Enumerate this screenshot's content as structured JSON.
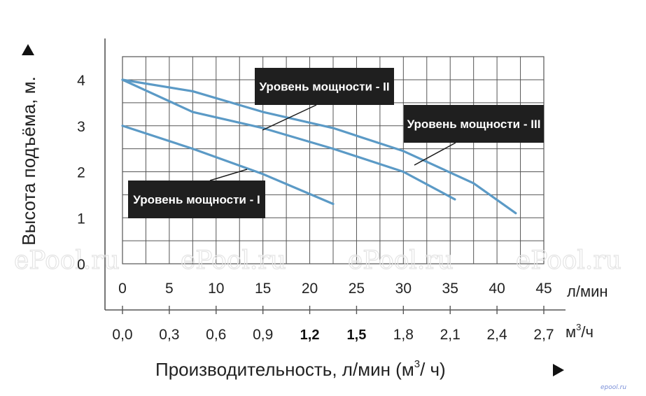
{
  "chart_data": {
    "type": "line",
    "y_axis": {
      "label": "Высота подъёма, м.",
      "ticks": [
        "0",
        "1",
        "2",
        "3",
        "4"
      ],
      "range": [
        0,
        4.5
      ]
    },
    "x_axis_lmin": {
      "unit": "л/мин",
      "ticks": [
        "0",
        "5",
        "10",
        "15",
        "20",
        "25",
        "30",
        "35",
        "40",
        "45"
      ],
      "range": [
        0,
        45
      ]
    },
    "x_axis_m3h": {
      "unit_main": "м",
      "unit_sup": "3",
      "unit_tail": "/ч",
      "ticks": [
        "0,0",
        "0,3",
        "0,6",
        "0,9",
        "1,2",
        "1,5",
        "1,8",
        "2,1",
        "2,4",
        "2,7"
      ]
    },
    "xlabel": {
      "main": "Производительность, л/мин (м",
      "sup": "3",
      "tail": "/ ч)"
    },
    "series": [
      {
        "name": "Уровень мощности - I",
        "x": [
          0,
          7.5,
          15,
          22.5
        ],
        "y": [
          3.0,
          2.5,
          1.95,
          1.3
        ]
      },
      {
        "name": "Уровень мощности - II",
        "x": [
          0,
          7.5,
          15,
          22.5,
          30,
          35.5
        ],
        "y": [
          4.0,
          3.3,
          2.95,
          2.5,
          2.0,
          1.4
        ]
      },
      {
        "name": "Уровень мощности - III",
        "x": [
          0,
          7.5,
          15,
          22.5,
          30,
          37.5,
          42
        ],
        "y": [
          4.0,
          3.75,
          3.3,
          2.95,
          2.45,
          1.75,
          1.1
        ]
      }
    ],
    "grid": true,
    "line_color": "#5b9ac6"
  },
  "watermark": "ePool.ru",
  "brand_mark": "epool.ru"
}
